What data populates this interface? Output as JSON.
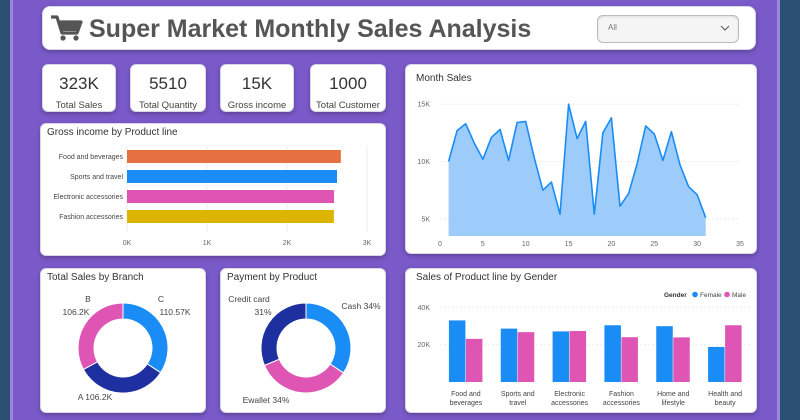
{
  "header": {
    "title": "Super Market Monthly Sales Analysis",
    "filter_value": "All",
    "icons": {
      "cart": "shopping-cart-icon",
      "dropdown": "chevron-down-icon"
    }
  },
  "kpis": [
    {
      "value": "323K",
      "label": "Total Sales"
    },
    {
      "value": "5510",
      "label": "Total Quantity"
    },
    {
      "value": "15K",
      "label": "Gross income"
    },
    {
      "value": "1000",
      "label": "Total Customer"
    }
  ],
  "colors": {
    "frame": "#7a5ac9",
    "orange": "#e6703f",
    "blue": "#1a8cf5",
    "pink": "#df55b3",
    "gold": "#ddb400",
    "navy": "#1e2fa0",
    "area_fill": "#92c6fb",
    "area_line": "#1a8cf5"
  },
  "chart_data": [
    {
      "type": "bar",
      "orientation": "horizontal",
      "title": "Gross income by Product line",
      "categories": [
        "Food and beverages",
        "Sports and travel",
        "Electronic accessories",
        "Fashion accessories"
      ],
      "values": [
        2673,
        2625,
        2588,
        2586
      ],
      "colors": [
        "#e6703f",
        "#1a8cf5",
        "#df55b3",
        "#ddb400"
      ],
      "xlim": [
        0,
        3000
      ],
      "xticks": [
        "0K",
        "1K",
        "2K",
        "3K"
      ],
      "grid": true
    },
    {
      "type": "area",
      "title": "Month Sales",
      "x": [
        1,
        2,
        3,
        4,
        5,
        6,
        7,
        8,
        9,
        10,
        11,
        12,
        13,
        14,
        15,
        16,
        17,
        18,
        19,
        20,
        21,
        22,
        23,
        24,
        25,
        26,
        27,
        28,
        29,
        30,
        31
      ],
      "values": [
        10000,
        12700,
        13300,
        11600,
        10200,
        12100,
        12800,
        10100,
        13400,
        13500,
        10300,
        7500,
        8200,
        5400,
        15000,
        12000,
        13500,
        5400,
        12500,
        13800,
        6100,
        7200,
        9800,
        13100,
        12400,
        10100,
        12600,
        9700,
        7800,
        7100,
        5100
      ],
      "xlim": [
        0,
        35
      ],
      "ylim": [
        3500,
        16500
      ],
      "xticks": [
        "0",
        "5",
        "10",
        "15",
        "20",
        "25",
        "30",
        "35"
      ],
      "yticks": [
        {
          "v": 5000,
          "label": "5K"
        },
        {
          "v": 10000,
          "label": "10K"
        },
        {
          "v": 15000,
          "label": "15K"
        }
      ]
    },
    {
      "type": "pie",
      "donut": true,
      "title": "Total Sales by Branch",
      "slices": [
        {
          "name": "C",
          "value": 110570,
          "label": "110.57K",
          "color": "#1a8cf5"
        },
        {
          "name": "A",
          "value": 106200,
          "label": "106.2K",
          "color": "#1e2fa0"
        },
        {
          "name": "B",
          "value": 106200,
          "label": "106.2K",
          "color": "#df55b3"
        }
      ],
      "labels": {
        "B": "B\n106.2K",
        "C": "C\n110.57K",
        "A": "A 106.2K"
      }
    },
    {
      "type": "pie",
      "donut": true,
      "title": "Payment by Product",
      "slices": [
        {
          "name": "Cash",
          "value": 34,
          "label": "Cash 34%",
          "color": "#1a8cf5"
        },
        {
          "name": "Ewallet",
          "value": 34,
          "label": "Ewallet 34%",
          "color": "#df55b3"
        },
        {
          "name": "Credit card",
          "value": 31,
          "label": "Credit card 31%",
          "color": "#1e2fa0"
        }
      ],
      "labels": {
        "Credit card": [
          "Credit card",
          "31%"
        ]
      }
    },
    {
      "type": "bar",
      "title": "Sales of Product line by Gender",
      "legend_title": "Gender",
      "categories": [
        [
          "Food and",
          "beverages"
        ],
        [
          "Sports and",
          "travel"
        ],
        [
          "Electronic",
          "accessories"
        ],
        [
          "Fashion",
          "accessories"
        ],
        [
          "Home and",
          "lifestyle"
        ],
        [
          "Health and",
          "beauty"
        ]
      ],
      "series": [
        {
          "name": "Female",
          "values": [
            33000,
            28600,
            27100,
            30400,
            29900,
            18800
          ],
          "color": "#1a8cf5"
        },
        {
          "name": "Male",
          "values": [
            23100,
            26700,
            27300,
            24000,
            23900,
            30400
          ],
          "color": "#df55b3"
        }
      ],
      "ylim": [
        0,
        45000
      ],
      "yticks": [
        {
          "v": 20000,
          "label": "20K"
        },
        {
          "v": 40000,
          "label": "40K"
        }
      ],
      "legend": "top-right"
    }
  ]
}
